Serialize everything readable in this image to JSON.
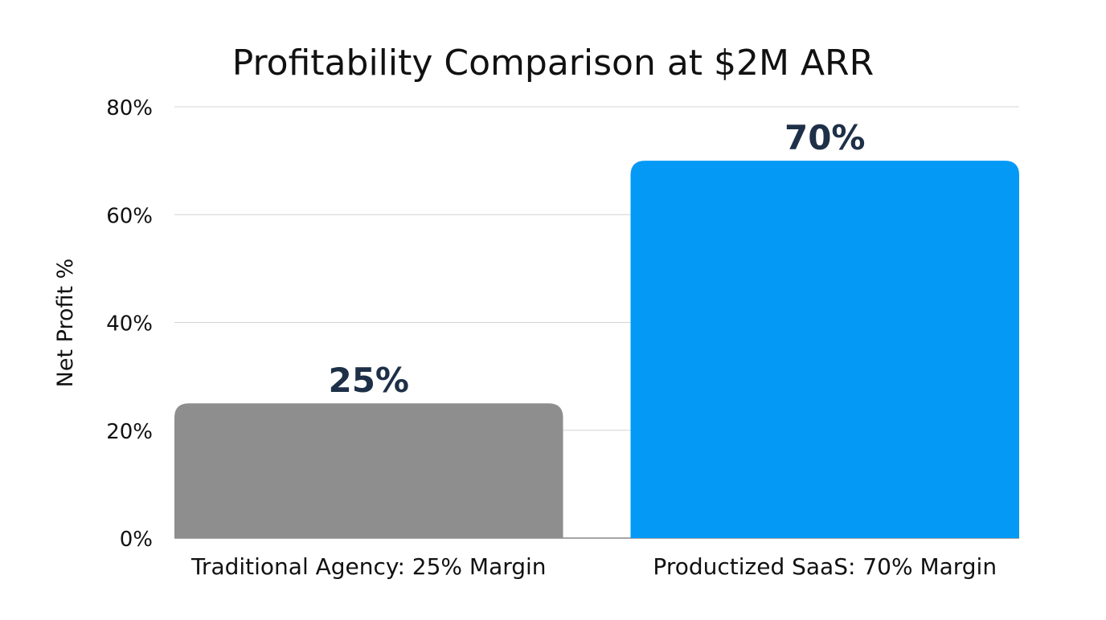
{
  "chart_data": {
    "type": "bar",
    "title": "Profitability Comparison at $2M ARR",
    "xlabel": "",
    "ylabel": "Net Profit %",
    "ylim": [
      0,
      80
    ],
    "yticks": [
      0,
      20,
      40,
      60,
      80
    ],
    "ytick_labels": [
      "0%",
      "20%",
      "40%",
      "60%",
      "80%"
    ],
    "categories": [
      "Traditional Agency: 25% Margin",
      "Productized SaaS: 70% Margin"
    ],
    "values": [
      25,
      70
    ],
    "data_labels": [
      "25%",
      "70%"
    ],
    "colors": [
      "#8e8e8e",
      "#0599f6"
    ],
    "data_label_color": "#1e3048",
    "grid": true,
    "legend": "none"
  }
}
